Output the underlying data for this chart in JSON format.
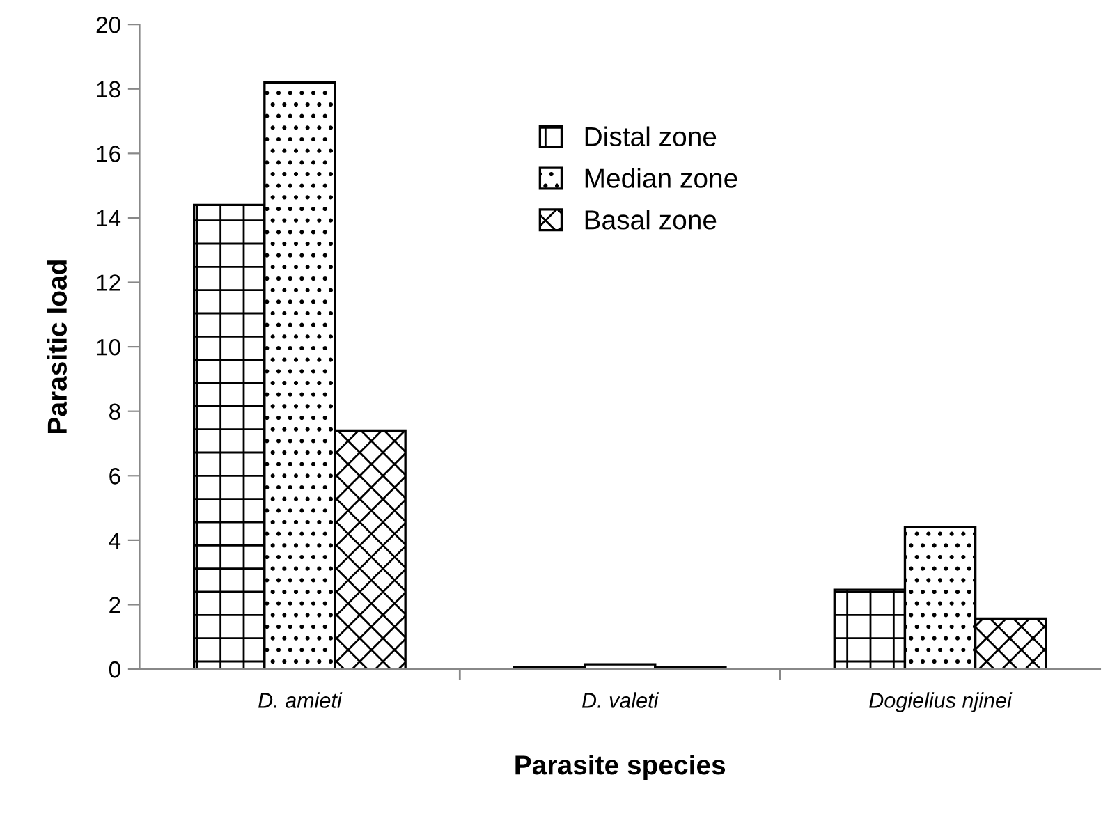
{
  "chart_data": {
    "type": "bar",
    "xlabel": "Parasite species",
    "ylabel": "Parasitic load",
    "categories": [
      "D. amieti",
      "D. valeti",
      "Dogielius njinei"
    ],
    "series": [
      {
        "name": "Distal zone",
        "color": "#000000",
        "values": [
          14.4,
          0.07,
          2.46
        ]
      },
      {
        "name": "Median zone",
        "color": "#000000",
        "values": [
          18.2,
          0.15,
          4.4
        ]
      },
      {
        "name": "Basal zone",
        "color": "#000000",
        "values": [
          7.4,
          0.07,
          1.57
        ]
      }
    ],
    "ylim": [
      0,
      20
    ],
    "yticks": [
      0,
      2,
      4,
      6,
      8,
      10,
      12,
      14,
      16,
      18,
      20
    ],
    "grid": false,
    "legend": "top"
  }
}
